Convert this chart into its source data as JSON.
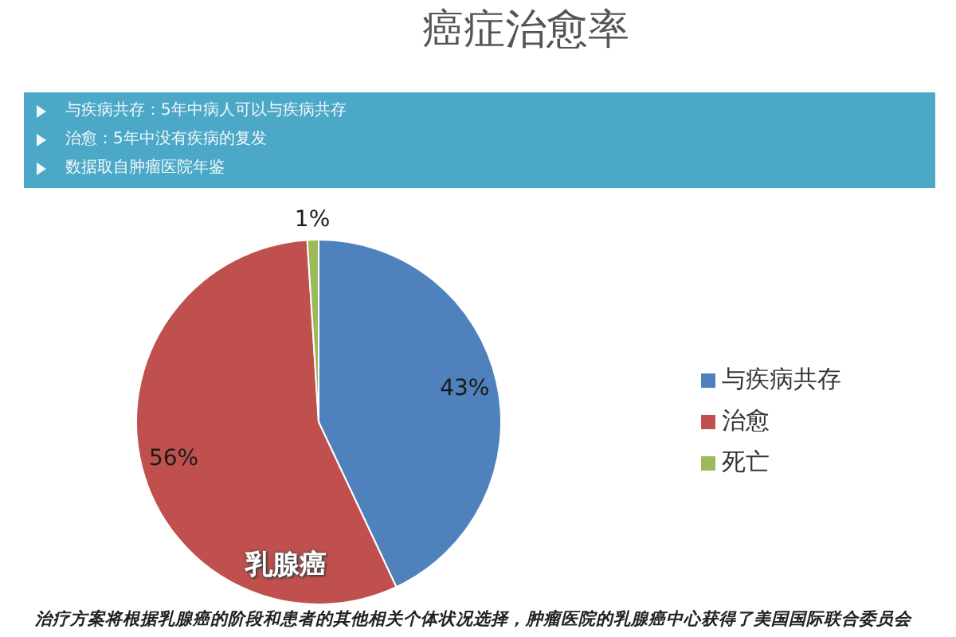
{
  "chart_data": {
    "type": "pie",
    "title": "癌症治愈率",
    "annotations": [
      "与疾病共存：5年中病人可以与疾病共存",
      "治愈：5年中没有疾病的复发",
      "数据取自肿瘤医院年鉴",
      "乳腺癌",
      "治疗方案将根据乳腺癌的阶段和患者的其他相关个体状况选择，肿瘤医院的乳腺癌中心获得了美国国际联合委员会"
    ],
    "categories": [
      "与疾病共存",
      "治愈",
      "死亡"
    ],
    "values": [
      43,
      56,
      1
    ],
    "colors": [
      "#4f81bd",
      "#c0504d",
      "#9bbb59"
    ],
    "value_labels": [
      "43%",
      "56%",
      "1%"
    ],
    "legend": "right"
  }
}
